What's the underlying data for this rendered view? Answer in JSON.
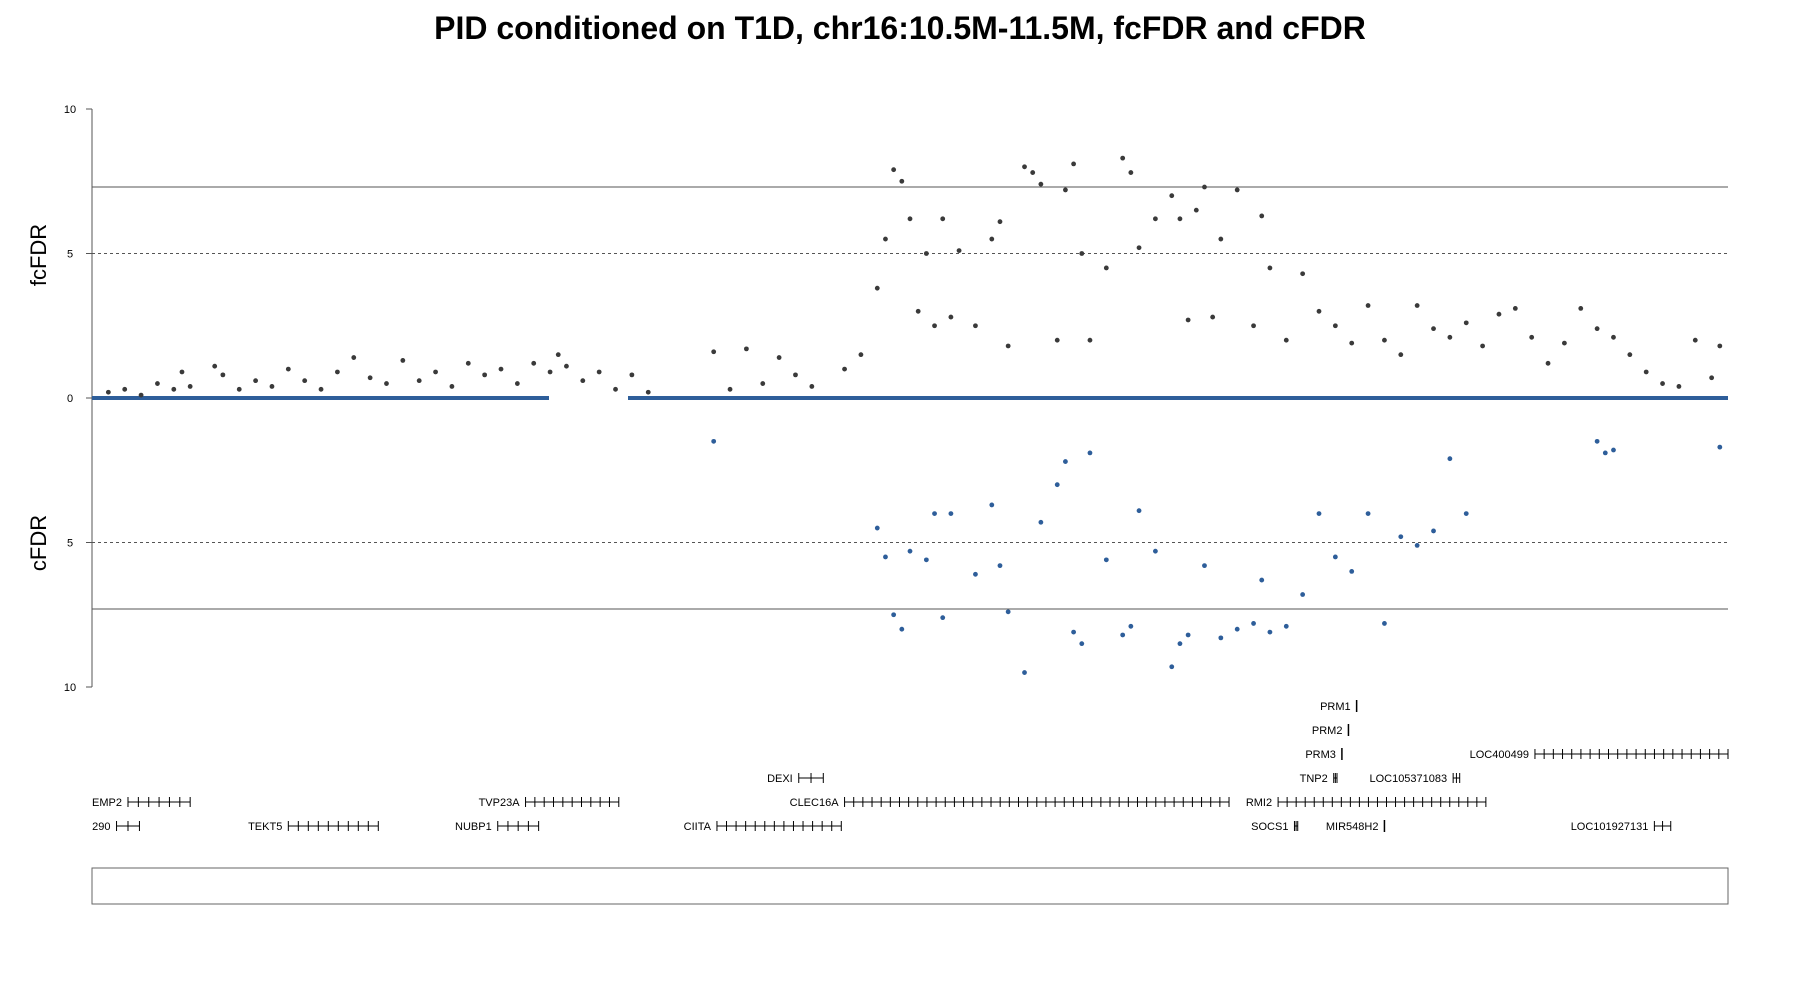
{
  "chart_data": {
    "type": "scatter",
    "title": "PID conditioned on T1D, chr16:10.5M-11.5M, fcFDR and cFDR",
    "region": {
      "chrom": "chr16",
      "start": 10500000,
      "end": 11500000
    },
    "colors": {
      "fcFDR": "#3a3a3a",
      "cFDR": "#2e5e9a",
      "axis": "#555555"
    },
    "upper_panel": {
      "ylabel": "fcFDR",
      "ylim": [
        0,
        10
      ],
      "tick_labels": [
        "0",
        "5",
        "10"
      ],
      "ticks": [
        0,
        5,
        10
      ],
      "solid_threshold": 7.3,
      "dashed_threshold": 5
    },
    "lower_panel": {
      "ylabel": "cFDR",
      "ylim": [
        0,
        10
      ],
      "tick_labels": [
        "5",
        "10"
      ],
      "ticks": [
        5,
        10
      ],
      "solid_threshold": 7.3,
      "dashed_threshold": 5
    },
    "series": [
      {
        "name": "fcFDR",
        "points": [
          [
            10.51,
            0.2
          ],
          [
            10.52,
            0.3
          ],
          [
            10.53,
            0.1
          ],
          [
            10.54,
            0.5
          ],
          [
            10.55,
            0.3
          ],
          [
            10.555,
            0.9
          ],
          [
            10.56,
            0.4
          ],
          [
            10.575,
            1.1
          ],
          [
            10.58,
            0.8
          ],
          [
            10.59,
            0.3
          ],
          [
            10.6,
            0.6
          ],
          [
            10.61,
            0.4
          ],
          [
            10.62,
            1.0
          ],
          [
            10.63,
            0.6
          ],
          [
            10.64,
            0.3
          ],
          [
            10.65,
            0.9
          ],
          [
            10.66,
            1.4
          ],
          [
            10.67,
            0.7
          ],
          [
            10.68,
            0.5
          ],
          [
            10.69,
            1.3
          ],
          [
            10.7,
            0.6
          ],
          [
            10.71,
            0.9
          ],
          [
            10.72,
            0.4
          ],
          [
            10.73,
            1.2
          ],
          [
            10.74,
            0.8
          ],
          [
            10.75,
            1.0
          ],
          [
            10.76,
            0.5
          ],
          [
            10.77,
            1.2
          ],
          [
            10.78,
            0.9
          ],
          [
            10.785,
            1.5
          ],
          [
            10.79,
            1.1
          ],
          [
            10.8,
            0.6
          ],
          [
            10.81,
            0.9
          ],
          [
            10.82,
            0.3
          ],
          [
            10.83,
            0.8
          ],
          [
            10.84,
            0.2
          ],
          [
            10.88,
            1.6
          ],
          [
            10.89,
            0.3
          ],
          [
            10.9,
            1.7
          ],
          [
            10.91,
            0.5
          ],
          [
            10.92,
            1.4
          ],
          [
            10.93,
            0.8
          ],
          [
            10.94,
            0.4
          ],
          [
            10.96,
            1.0
          ],
          [
            10.97,
            1.5
          ],
          [
            10.98,
            3.8
          ],
          [
            10.985,
            5.5
          ],
          [
            10.99,
            7.9
          ],
          [
            10.995,
            7.5
          ],
          [
            11.0,
            6.2
          ],
          [
            11.005,
            3.0
          ],
          [
            11.01,
            5.0
          ],
          [
            11.015,
            2.5
          ],
          [
            11.02,
            6.2
          ],
          [
            11.025,
            2.8
          ],
          [
            11.03,
            5.1
          ],
          [
            11.04,
            2.5
          ],
          [
            11.05,
            5.5
          ],
          [
            11.055,
            6.1
          ],
          [
            11.06,
            1.8
          ],
          [
            11.07,
            8.0
          ],
          [
            11.075,
            7.8
          ],
          [
            11.08,
            7.4
          ],
          [
            11.09,
            2.0
          ],
          [
            11.095,
            7.2
          ],
          [
            11.1,
            8.1
          ],
          [
            11.105,
            5.0
          ],
          [
            11.11,
            2.0
          ],
          [
            11.12,
            4.5
          ],
          [
            11.13,
            8.3
          ],
          [
            11.135,
            7.8
          ],
          [
            11.14,
            5.2
          ],
          [
            11.15,
            6.2
          ],
          [
            11.16,
            7.0
          ],
          [
            11.165,
            6.2
          ],
          [
            11.17,
            2.7
          ],
          [
            11.175,
            6.5
          ],
          [
            11.18,
            7.3
          ],
          [
            11.185,
            2.8
          ],
          [
            11.19,
            5.5
          ],
          [
            11.2,
            7.2
          ],
          [
            11.21,
            2.5
          ],
          [
            11.215,
            6.3
          ],
          [
            11.22,
            4.5
          ],
          [
            11.23,
            2.0
          ],
          [
            11.24,
            4.3
          ],
          [
            11.25,
            3.0
          ],
          [
            11.26,
            2.5
          ],
          [
            11.27,
            1.9
          ],
          [
            11.28,
            3.2
          ],
          [
            11.29,
            2.0
          ],
          [
            11.3,
            1.5
          ],
          [
            11.31,
            3.2
          ],
          [
            11.32,
            2.4
          ],
          [
            11.33,
            2.1
          ],
          [
            11.34,
            2.6
          ],
          [
            11.35,
            1.8
          ],
          [
            11.36,
            2.9
          ],
          [
            11.37,
            3.1
          ],
          [
            11.38,
            2.1
          ],
          [
            11.39,
            1.2
          ],
          [
            11.4,
            1.9
          ],
          [
            11.41,
            3.1
          ],
          [
            11.42,
            2.4
          ],
          [
            11.43,
            2.1
          ],
          [
            11.44,
            1.5
          ],
          [
            11.45,
            0.9
          ],
          [
            11.46,
            0.5
          ],
          [
            11.47,
            0.4
          ],
          [
            11.48,
            2.0
          ],
          [
            11.49,
            0.7
          ],
          [
            11.495,
            1.8
          ]
        ]
      },
      {
        "name": "cFDR",
        "points": [
          [
            10.88,
            1.5
          ],
          [
            10.98,
            4.5
          ],
          [
            10.985,
            5.5
          ],
          [
            10.99,
            7.5
          ],
          [
            10.995,
            8.0
          ],
          [
            11.0,
            5.3
          ],
          [
            11.01,
            5.6
          ],
          [
            11.015,
            4.0
          ],
          [
            11.02,
            7.6
          ],
          [
            11.025,
            4.0
          ],
          [
            11.04,
            6.1
          ],
          [
            11.05,
            3.7
          ],
          [
            11.055,
            5.8
          ],
          [
            11.06,
            7.4
          ],
          [
            11.07,
            9.5
          ],
          [
            11.08,
            4.3
          ],
          [
            11.09,
            3.0
          ],
          [
            11.095,
            2.2
          ],
          [
            11.1,
            8.1
          ],
          [
            11.105,
            8.5
          ],
          [
            11.11,
            1.9
          ],
          [
            11.12,
            5.6
          ],
          [
            11.13,
            8.2
          ],
          [
            11.135,
            7.9
          ],
          [
            11.14,
            3.9
          ],
          [
            11.15,
            5.3
          ],
          [
            11.16,
            9.3
          ],
          [
            11.165,
            8.5
          ],
          [
            11.17,
            8.2
          ],
          [
            11.18,
            5.8
          ],
          [
            11.19,
            8.3
          ],
          [
            11.2,
            8.0
          ],
          [
            11.21,
            7.8
          ],
          [
            11.215,
            6.3
          ],
          [
            11.22,
            8.1
          ],
          [
            11.23,
            7.9
          ],
          [
            11.24,
            6.8
          ],
          [
            11.25,
            4.0
          ],
          [
            11.26,
            5.5
          ],
          [
            11.27,
            6.0
          ],
          [
            11.28,
            4.0
          ],
          [
            11.29,
            7.8
          ],
          [
            11.3,
            4.8
          ],
          [
            11.31,
            5.1
          ],
          [
            11.32,
            4.6
          ],
          [
            11.33,
            2.1
          ],
          [
            11.34,
            4.0
          ],
          [
            11.42,
            1.5
          ],
          [
            11.425,
            1.9
          ],
          [
            11.43,
            1.8
          ],
          [
            11.495,
            1.7
          ]
        ]
      }
    ],
    "genes": [
      {
        "name": "EMP2",
        "start": 10.522,
        "end": 10.56,
        "row": 1
      },
      {
        "name": "TEKT5",
        "start": 10.62,
        "end": 10.675,
        "row": 0
      },
      {
        "name": "TVP23A",
        "start": 10.765,
        "end": 10.822,
        "row": 1
      },
      {
        "name": "NUBP1",
        "start": 10.748,
        "end": 10.773,
        "row": 0
      },
      {
        "name": "CIITA",
        "start": 10.882,
        "end": 10.958,
        "row": 0
      },
      {
        "name": "DEXI",
        "start": 10.932,
        "end": 10.947,
        "row": 2
      },
      {
        "name": "CLEC16A",
        "start": 10.96,
        "end": 11.195,
        "row": 1
      },
      {
        "name": "PRM1",
        "start": 11.273,
        "end": 11.274,
        "row": 5
      },
      {
        "name": "PRM2",
        "start": 11.268,
        "end": 11.269,
        "row": 4
      },
      {
        "name": "PRM3",
        "start": 11.264,
        "end": 11.265,
        "row": 3
      },
      {
        "name": "TNP2",
        "start": 11.259,
        "end": 11.261,
        "row": 2
      },
      {
        "name": "RMI2",
        "start": 11.225,
        "end": 11.352,
        "row": 1
      },
      {
        "name": "SOCS1",
        "start": 11.235,
        "end": 11.237,
        "row": 0
      },
      {
        "name": "MIR548H2",
        "start": 11.29,
        "end": 11.291,
        "row": 0
      },
      {
        "name": "LOC105371083",
        "start": 11.332,
        "end": 11.336,
        "row": 2
      },
      {
        "name": "LOC400499",
        "start": 11.382,
        "end": 11.5,
        "row": 3
      },
      {
        "name": "LOC101927131",
        "start": 11.455,
        "end": 11.465,
        "row": 0
      },
      {
        "name": "290",
        "start": 10.515,
        "end": 10.529,
        "row": 0
      }
    ]
  }
}
